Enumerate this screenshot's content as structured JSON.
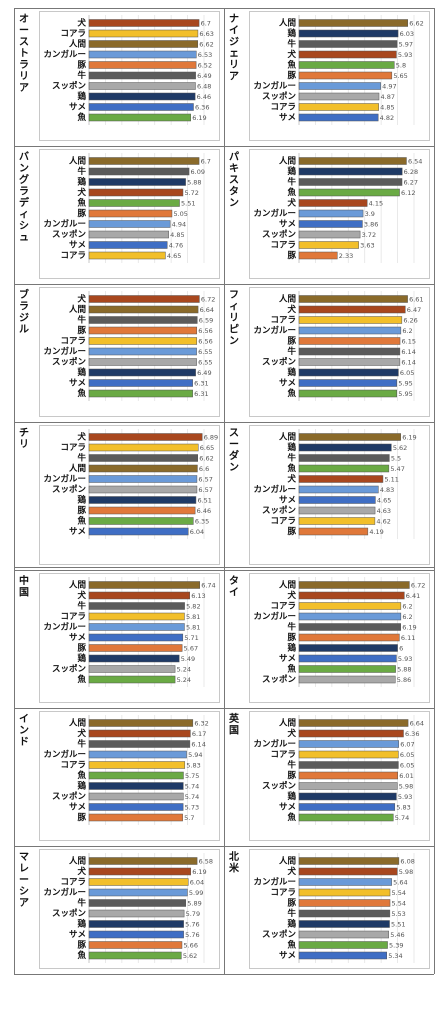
{
  "colors": {
    "人間": "#8a6a2a",
    "犬": "#a8471e",
    "牛": "#5b5b5b",
    "鶏": "#1f3a66",
    "豚": "#e0783a",
    "コアラ": "#f2bf2a",
    "カンガルー": "#6a9ad8",
    "スッポン": "#a8a8a8",
    "サメ": "#3f6ec4",
    "魚": "#6aaa44"
  },
  "chart_data": [
    {
      "type": "bar",
      "title": "オーストラリア",
      "categories": [
        "犬",
        "コアラ",
        "人間",
        "カンガルー",
        "豚",
        "牛",
        "スッポン",
        "鶏",
        "サメ",
        "魚"
      ],
      "values": [
        6.7,
        6.63,
        6.62,
        6.53,
        6.52,
        6.49,
        6.48,
        6.46,
        6.36,
        6.19
      ]
    },
    {
      "type": "bar",
      "title": "ナイジェリア",
      "categories": [
        "人間",
        "鶏",
        "牛",
        "犬",
        "魚",
        "豚",
        "カンガルー",
        "スッポン",
        "コアラ",
        "サメ"
      ],
      "values": [
        6.62,
        6.03,
        5.97,
        5.93,
        5.8,
        5.65,
        4.97,
        4.87,
        4.85,
        4.82
      ]
    },
    {
      "type": "bar",
      "title": "バングラディシュ",
      "categories": [
        "人間",
        "牛",
        "鶏",
        "犬",
        "魚",
        "豚",
        "カンガルー",
        "スッポン",
        "サメ",
        "コアラ"
      ],
      "values": [
        6.7,
        6.09,
        5.88,
        5.72,
        5.51,
        5.05,
        4.94,
        4.85,
        4.76,
        4.65
      ]
    },
    {
      "type": "bar",
      "title": "パキスタン",
      "categories": [
        "人間",
        "鶏",
        "牛",
        "魚",
        "犬",
        "カンガルー",
        "サメ",
        "スッポン",
        "コアラ",
        "豚"
      ],
      "values": [
        6.54,
        6.28,
        6.27,
        6.12,
        4.15,
        3.9,
        3.86,
        3.72,
        3.63,
        2.33
      ]
    },
    {
      "type": "bar",
      "title": "ブラジル",
      "categories": [
        "犬",
        "人間",
        "牛",
        "豚",
        "コアラ",
        "カンガルー",
        "スッポン",
        "鶏",
        "サメ",
        "魚"
      ],
      "values": [
        6.72,
        6.64,
        6.59,
        6.56,
        6.56,
        6.55,
        6.55,
        6.49,
        6.31,
        6.31
      ]
    },
    {
      "type": "bar",
      "title": "フィリピン",
      "categories": [
        "人間",
        "犬",
        "コアラ",
        "カンガルー",
        "豚",
        "牛",
        "スッポン",
        "鶏",
        "サメ",
        "魚"
      ],
      "values": [
        6.61,
        6.47,
        6.26,
        6.2,
        6.15,
        6.14,
        6.14,
        6.05,
        5.95,
        5.95
      ]
    },
    {
      "type": "bar",
      "title": "チリ",
      "categories": [
        "犬",
        "コアラ",
        "牛",
        "人間",
        "カンガルー",
        "スッポン",
        "鶏",
        "豚",
        "魚",
        "サメ"
      ],
      "values": [
        6.89,
        6.65,
        6.62,
        6.6,
        6.57,
        6.57,
        6.51,
        6.46,
        6.35,
        6.04
      ]
    },
    {
      "type": "bar",
      "title": "スーダン",
      "categories": [
        "人間",
        "鶏",
        "牛",
        "魚",
        "犬",
        "カンガルー",
        "サメ",
        "スッポン",
        "コアラ",
        "豚"
      ],
      "values": [
        6.19,
        5.62,
        5.5,
        5.47,
        5.11,
        4.83,
        4.65,
        4.63,
        4.62,
        4.19
      ]
    },
    {
      "type": "bar",
      "title": "中国",
      "categories": [
        "人間",
        "犬",
        "牛",
        "コアラ",
        "カンガルー",
        "サメ",
        "豚",
        "鶏",
        "スッポン",
        "魚"
      ],
      "values": [
        6.74,
        6.13,
        5.82,
        5.81,
        5.81,
        5.71,
        5.67,
        5.49,
        5.24,
        5.24
      ]
    },
    {
      "type": "bar",
      "title": "タイ",
      "categories": [
        "人間",
        "犬",
        "コアラ",
        "カンガルー",
        "牛",
        "豚",
        "鶏",
        "サメ",
        "魚",
        "スッポン"
      ],
      "values": [
        6.72,
        6.41,
        6.2,
        6.2,
        6.19,
        6.11,
        6,
        5.93,
        5.88,
        5.86
      ]
    },
    {
      "type": "bar",
      "title": "インド",
      "categories": [
        "人間",
        "犬",
        "牛",
        "カンガルー",
        "コアラ",
        "魚",
        "鶏",
        "スッポン",
        "サメ",
        "豚"
      ],
      "values": [
        6.32,
        6.17,
        6.14,
        5.94,
        5.83,
        5.75,
        5.74,
        5.74,
        5.73,
        5.7
      ]
    },
    {
      "type": "bar",
      "title": "英国",
      "categories": [
        "人間",
        "犬",
        "カンガルー",
        "コアラ",
        "牛",
        "豚",
        "スッポン",
        "鶏",
        "サメ",
        "魚"
      ],
      "values": [
        6.64,
        6.36,
        6.07,
        6.05,
        6.05,
        6.01,
        5.98,
        5.93,
        5.83,
        5.74
      ]
    },
    {
      "type": "bar",
      "title": "マレーシア",
      "categories": [
        "人間",
        "犬",
        "コアラ",
        "カンガルー",
        "牛",
        "スッポン",
        "鶏",
        "サメ",
        "豚",
        "魚"
      ],
      "values": [
        6.58,
        6.19,
        6.04,
        5.99,
        5.89,
        5.79,
        5.76,
        5.76,
        5.66,
        5.62
      ]
    },
    {
      "type": "bar",
      "title": "北米",
      "categories": [
        "人間",
        "犬",
        "カンガルー",
        "コアラ",
        "豚",
        "牛",
        "鶏",
        "スッポン",
        "魚",
        "サメ"
      ],
      "values": [
        6.08,
        5.98,
        5.64,
        5.54,
        5.54,
        5.53,
        5.51,
        5.46,
        5.39,
        5.34
      ]
    }
  ]
}
